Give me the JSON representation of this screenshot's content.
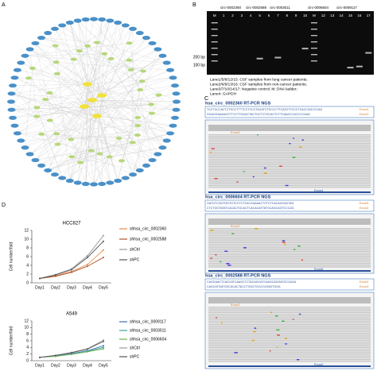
{
  "panel_labels": [
    "A",
    "B",
    "C",
    "D"
  ],
  "gel": {
    "samples": [
      "circ-0002360",
      "circ-0002588",
      "circ-0003011",
      "circ-0006604",
      "circ-0009117"
    ],
    "lanes": [
      "M",
      "1",
      "2",
      "3",
      "4",
      "5",
      "6",
      "7",
      "8",
      "9",
      "10",
      "M",
      "12",
      "13",
      "14",
      "15",
      "16",
      "17"
    ],
    "markers": [
      "200 bp",
      "100 bp"
    ],
    "legend": [
      "Lane1/5/8/12/15: CSF samples from lung cancer patients;",
      "Lane2/6/9/13/16: CSF samples from non-cancer patients;",
      "Lane3/7/10/14/17: Negative control; M: DNA ladder;",
      "Lane4: GAPDH"
    ]
  },
  "ngs": [
    {
      "title": "hsa_circ_0002360 RT-PCR NGS",
      "sequence": [
        "TCCTGCCACTCTGCCTTTTCCTCCCTACATCTGCCCTTCATGTTCCCTCACCGGCCCAG",
        "GGAGGAAAAGCTTCCTTGAGCTACTGCTCTGCACTCTTCAAGCCACCCCAAG"
      ],
      "exons": [
        "Exon4",
        "Exon3"
      ]
    },
    {
      "title": "hsa_circ_0006604 RT-PCR NGS",
      "sequence": [
        "GATGTCGGTGGTGTCCTCTCACGAAAACTCTCTCACAGCAGTAG",
        "CTCTGGTATATCACACTGCACTCACACATTATGCAGCAGTCCCAG"
      ],
      "exons": [
        "Exon5",
        "Exon2"
      ]
    },
    {
      "title": "hsa_circ_0002588 RT-PCR NGS",
      "sequence": [
        "CAGGAACTCAGCATCAAGCTCTACAGCATCAAGCAGGATGCCAGA",
        "CAGCATGATGGCACACTACCTGGGTGGCCATAGTGGA"
      ],
      "exons": [
        "Exon2",
        "Exon3"
      ]
    }
  ],
  "chart_data": [
    {
      "type": "line",
      "title": "HCC827",
      "y_label": "Cell number/fold",
      "categories": [
        "Day1",
        "Day2",
        "Day3",
        "Day4",
        "Day5"
      ],
      "ylim": [
        0,
        12
      ],
      "yticks": [
        0,
        2,
        4,
        6,
        8,
        10,
        12
      ],
      "series": [
        {
          "name": "shhsa_circ_0002360",
          "color": "#e8894a",
          "values": [
            1,
            1.6,
            2.6,
            4.2,
            7.5
          ]
        },
        {
          "name": "shhsa_circ_0002588",
          "color": "#b0552e",
          "values": [
            1,
            1.5,
            2.4,
            3.8,
            5.8
          ]
        },
        {
          "name": "shCtrl",
          "color": "#9a9a9a",
          "values": [
            1,
            1.9,
            3.2,
            6.2,
            10.8
          ]
        },
        {
          "name": "shPC",
          "color": "#555555",
          "values": [
            1,
            1.8,
            3.0,
            5.8,
            9.5
          ]
        }
      ]
    },
    {
      "type": "line",
      "title": "A549",
      "y_label": "Cell number/fold",
      "categories": [
        "Day1",
        "Day2",
        "Day3",
        "Day4",
        "Day5"
      ],
      "ylim": [
        0,
        12
      ],
      "yticks": [
        0,
        2,
        4,
        6,
        8,
        10,
        12
      ],
      "series": [
        {
          "name": "shhsa_circ_0009117",
          "color": "#3f6fb5",
          "values": [
            1,
            1.4,
            2.1,
            3.0,
            4.5
          ]
        },
        {
          "name": "shhsa_circ_0003011",
          "color": "#3aa6a0",
          "values": [
            1,
            1.4,
            2.0,
            2.9,
            4.0
          ]
        },
        {
          "name": "shhsa_circ_0006604",
          "color": "#6dae4f",
          "values": [
            1,
            1.3,
            1.9,
            2.7,
            3.6
          ]
        },
        {
          "name": "shCtrl",
          "color": "#9a9a9a",
          "values": [
            1,
            1.6,
            2.5,
            3.6,
            6.2
          ]
        },
        {
          "name": "shPC",
          "color": "#555555",
          "values": [
            1,
            1.6,
            2.4,
            3.5,
            5.8
          ]
        }
      ]
    }
  ]
}
